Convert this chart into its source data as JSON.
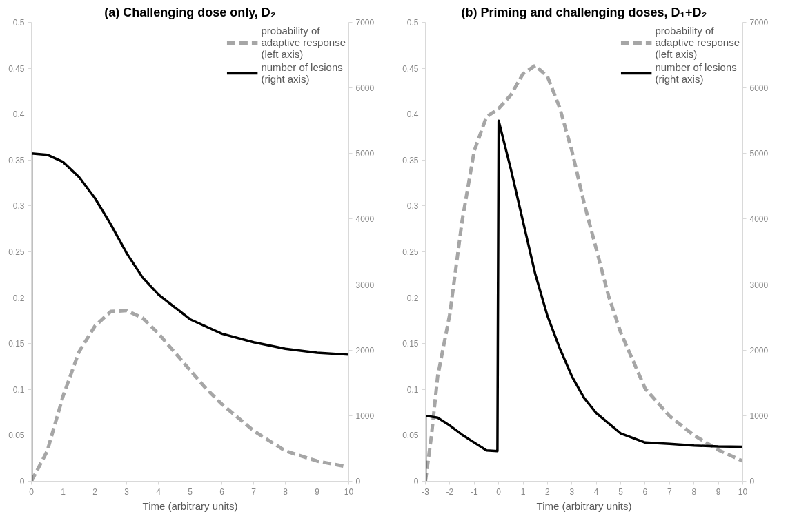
{
  "chart_data": [
    {
      "type": "line",
      "title": "(a) Challenging dose only, D₂",
      "xlabel": "Time (arbitrary units)",
      "xlim": [
        0,
        10
      ],
      "xticks": [
        0,
        1,
        2,
        3,
        4,
        5,
        6,
        7,
        8,
        9,
        10
      ],
      "ylim": [
        0,
        0.5
      ],
      "yticks": [
        0,
        0.05,
        0.1,
        0.15,
        0.2,
        0.25,
        0.3,
        0.35,
        0.4,
        0.45,
        0.5
      ],
      "y2lim": [
        0,
        7000
      ],
      "y2ticks": [
        0,
        1000,
        2000,
        3000,
        4000,
        5000,
        6000,
        7000
      ],
      "grid": false,
      "legend": "top right",
      "series": [
        {
          "name": "probability of adaptive response (left axis)",
          "color": "#a6a6a6",
          "line_style": "dashed",
          "x": [
            0,
            0.5,
            1,
            1.5,
            2,
            2.5,
            3,
            3.5,
            4,
            4.5,
            5,
            5.5,
            6,
            7,
            8,
            9,
            9.9
          ],
          "values": [
            0,
            0.033,
            0.093,
            0.141,
            0.169,
            0.185,
            0.186,
            0.178,
            0.161,
            0.141,
            0.121,
            0.101,
            0.084,
            0.055,
            0.033,
            0.022,
            0.016
          ]
        },
        {
          "name": "number of lesions (right axis)",
          "color": "#000000",
          "line_style": "solid",
          "axis": "y2",
          "x": [
            0,
            0,
            0.5,
            1,
            1.5,
            2,
            2.5,
            3,
            3.5,
            4,
            5,
            6,
            7,
            8,
            9,
            10
          ],
          "values": [
            0,
            5000,
            4980,
            4870,
            4640,
            4320,
            3920,
            3480,
            3110,
            2850,
            2470,
            2250,
            2120,
            2020,
            1960,
            1930
          ]
        }
      ]
    },
    {
      "type": "line",
      "title": "(b) Priming and challenging doses, D₁+D₂",
      "xlabel": "Time (arbitrary units)",
      "xlim": [
        -3,
        10
      ],
      "xticks": [
        -3,
        -2,
        -1,
        0,
        1,
        2,
        3,
        4,
        5,
        6,
        7,
        8,
        9,
        10
      ],
      "ylim": [
        0,
        0.5
      ],
      "yticks": [
        0,
        0.05,
        0.1,
        0.15,
        0.2,
        0.25,
        0.3,
        0.35,
        0.4,
        0.45,
        0.5
      ],
      "y2lim": [
        0,
        7000
      ],
      "y2ticks": [
        0,
        1000,
        2000,
        3000,
        4000,
        5000,
        6000,
        7000
      ],
      "grid": false,
      "legend": "top right",
      "series": [
        {
          "name": "probability of adaptive response (left axis)",
          "color": "#a6a6a6",
          "line_style": "dashed",
          "x": [
            -3,
            -2.75,
            -2.5,
            -2,
            -1.5,
            -1,
            -0.5,
            0,
            0.5,
            1,
            1.5,
            2,
            2.5,
            3,
            3.5,
            4,
            4.5,
            5,
            6,
            7,
            8,
            9,
            10
          ],
          "values": [
            0,
            0.05,
            0.114,
            0.182,
            0.283,
            0.36,
            0.397,
            0.406,
            0.421,
            0.444,
            0.453,
            0.441,
            0.407,
            0.36,
            0.303,
            0.253,
            0.202,
            0.162,
            0.101,
            0.071,
            0.05,
            0.034,
            0.022
          ]
        },
        {
          "name": "number of lesions (right axis)",
          "color": "#000000",
          "line_style": "solid",
          "axis": "y2",
          "x": [
            -3,
            -3,
            -2.5,
            -2,
            -1.5,
            -1,
            -0.5,
            -0.05,
            0,
            0.5,
            1,
            1.5,
            2,
            2.5,
            3,
            3.5,
            4,
            5,
            6,
            7,
            8,
            9,
            10
          ],
          "values": [
            0,
            1000,
            970,
            850,
            710,
            590,
            470,
            460,
            5500,
            4760,
            3960,
            3160,
            2520,
            2030,
            1600,
            1270,
            1040,
            730,
            590,
            570,
            545,
            530,
            525
          ]
        }
      ]
    }
  ]
}
